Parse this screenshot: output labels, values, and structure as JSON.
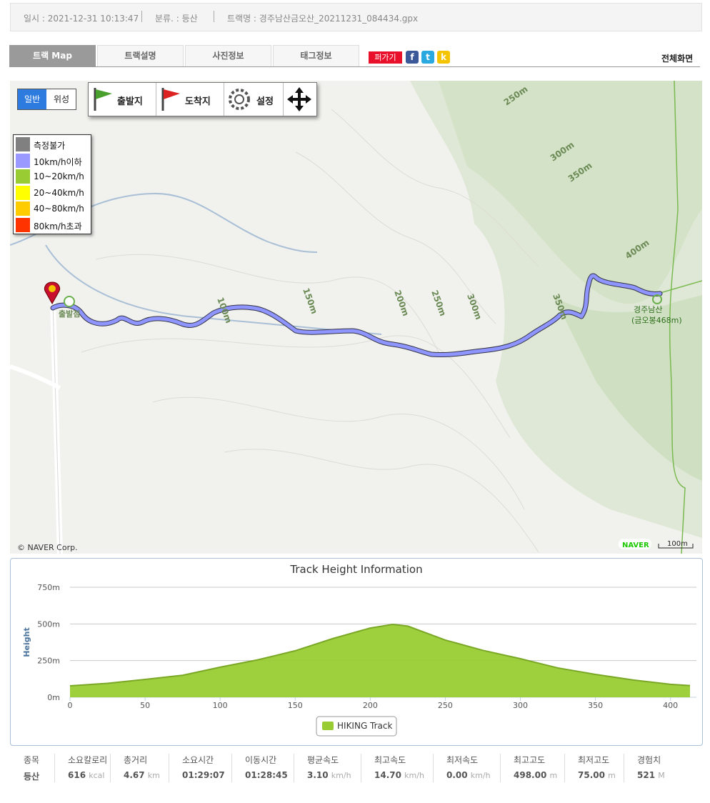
{
  "header": {
    "date": "일시 : 2021-12-31 10:13:47",
    "category": "분류. : 등산",
    "track_name": "트랙명 : 경주남산금오산_20211231_084434.gpx"
  },
  "tabs": [
    "트랙 Map",
    "트랙설명",
    "사진정보",
    "태그정보"
  ],
  "share": "퍼가기",
  "fullscreen": "전체화면",
  "map": {
    "view_buttons": [
      "일반",
      "위성"
    ],
    "toolbar": [
      "출발지",
      "도착지",
      "설정"
    ],
    "legend": [
      {
        "label": "측정불가",
        "color": "#808080"
      },
      {
        "label": "10km/h이하",
        "color": "#9999ff"
      },
      {
        "label": "10~20km/h",
        "color": "#99cc33"
      },
      {
        "label": "20~40km/h",
        "color": "#ffff00"
      },
      {
        "label": "40~80km/h",
        "color": "#ffcc00"
      },
      {
        "label": "80km/h초과",
        "color": "#ff3300"
      }
    ],
    "labels": [
      "100m",
      "150m",
      "200m",
      "250m",
      "300m",
      "250m",
      "300m",
      "350m",
      "400m",
      "350m",
      "출발점",
      "경주남산",
      "(금오봉468m)",
      "© NAVER Corp.",
      "NAVER",
      "100m"
    ]
  },
  "chart_data": {
    "type": "area",
    "title": "Track Height Information",
    "y_label": "Height",
    "x": [
      0,
      25,
      50,
      75,
      100,
      125,
      150,
      175,
      200,
      215,
      225,
      250,
      275,
      300,
      325,
      350,
      375,
      400,
      413
    ],
    "series": [
      {
        "name": "HIKING Track",
        "color": "#99cc33",
        "values": [
          78,
          95,
          122,
          150,
          205,
          255,
          317,
          400,
          472,
          497,
          485,
          390,
          320,
          263,
          200,
          156,
          118,
          88,
          80
        ]
      }
    ],
    "xlim": [
      0,
      413
    ],
    "xticks": [
      0,
      50,
      100,
      150,
      200,
      250,
      300,
      350,
      400
    ],
    "ylim": [
      0,
      750
    ],
    "yticks": [
      {
        "value": 0,
        "label": "0m"
      },
      {
        "value": 250,
        "label": "250m"
      },
      {
        "value": 500,
        "label": "500m"
      },
      {
        "value": 750,
        "label": "750m"
      }
    ],
    "grid": true
  },
  "stats": {
    "headers": [
      "종목",
      "소요칼로리",
      "총거리",
      "소요시간",
      "이동시간",
      "평균속도",
      "최고속도",
      "최저속도",
      "최고고도",
      "최저고도",
      "경험치"
    ],
    "values": [
      "등산",
      "616",
      "4.67",
      "01:29:07",
      "01:28:45",
      "3.10",
      "14.70",
      "0.00",
      "498.00",
      "75.00",
      "521"
    ],
    "units": [
      "",
      "kcal",
      "km",
      "",
      "",
      "km/h",
      "km/h",
      "km/h",
      "m",
      "m",
      "M"
    ]
  }
}
